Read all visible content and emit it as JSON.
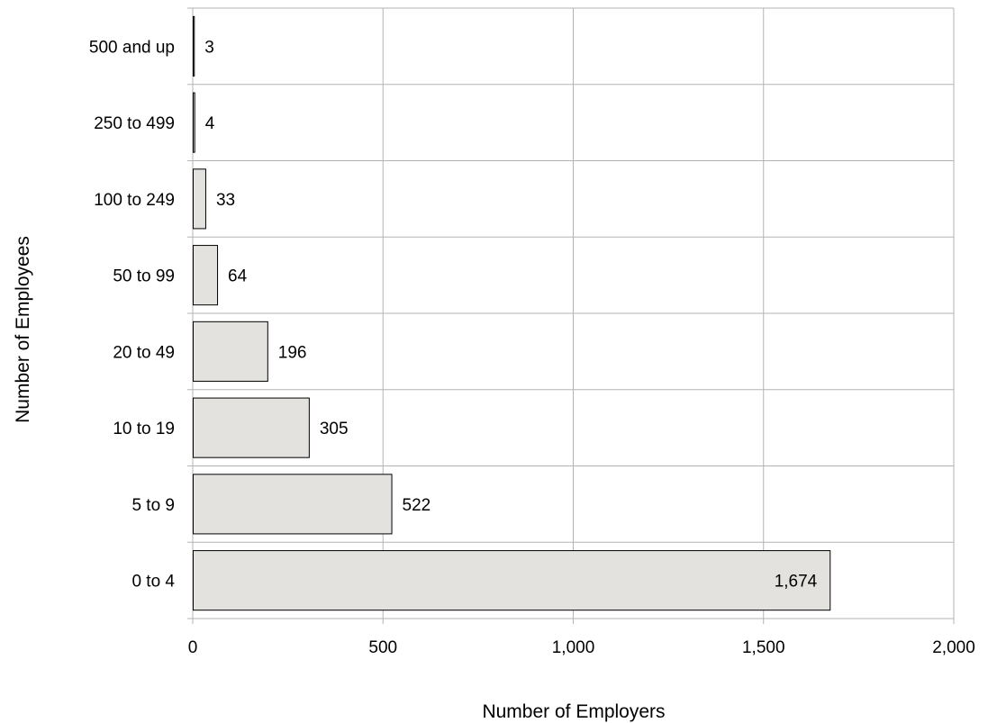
{
  "chart_data": {
    "type": "bar",
    "orientation": "horizontal",
    "title": "",
    "xlabel": "Number of Employers",
    "ylabel": "Number of Employees",
    "categories": [
      "500 and up",
      "250 to 499",
      "100 to 249",
      "50 to 99",
      "20 to 49",
      "10 to 19",
      "5 to 9",
      "0 to 4"
    ],
    "values": [
      3,
      4,
      33,
      64,
      196,
      305,
      522,
      1674
    ],
    "data_labels": [
      "3",
      "4",
      "33",
      "64",
      "196",
      "305",
      "522",
      "1,674"
    ],
    "xlim": [
      0,
      2000
    ],
    "xticks": [
      0,
      500,
      1000,
      1500,
      2000
    ],
    "xtick_labels": [
      "0",
      "500",
      "1,000",
      "1,500",
      "2,000"
    ],
    "grid": true,
    "legend": "none",
    "colors": {
      "bar_fill": "#e3e2df",
      "bar_stroke": "#000000",
      "grid": "#b3b3b3",
      "axis": "#b3b3b3"
    }
  }
}
